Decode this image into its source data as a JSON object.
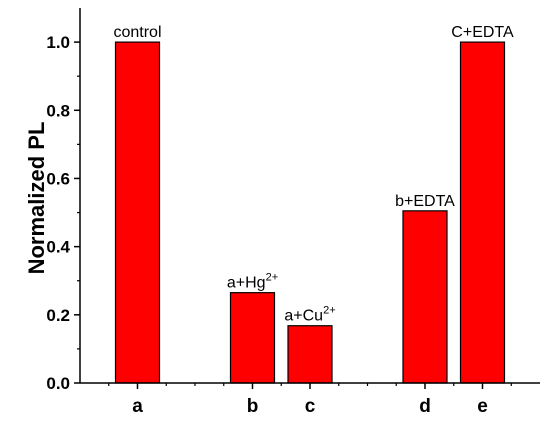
{
  "chart_data": {
    "type": "bar",
    "ylabel": "Normalized PL",
    "xlabel": "",
    "ylim": [
      0,
      1.1
    ],
    "yticks": [
      "0.0",
      "0.2",
      "0.4",
      "0.6",
      "0.8",
      "1.0"
    ],
    "positions": [
      1,
      3,
      4,
      6,
      7
    ],
    "xlim": [
      0,
      8
    ],
    "categories": [
      "a",
      "b",
      "c",
      "d",
      "e"
    ],
    "values": [
      1.0,
      0.265,
      0.168,
      0.505,
      1.0
    ],
    "annotations": [
      {
        "base": "control",
        "sup": ""
      },
      {
        "base": "a+Hg",
        "sup": "2+"
      },
      {
        "base": "a+Cu",
        "sup": "2+"
      },
      {
        "base": "b+EDTA",
        "sup": ""
      },
      {
        "base": "C+EDTA",
        "sup": ""
      }
    ],
    "bar_color": "#ff0000",
    "grid": false
  }
}
